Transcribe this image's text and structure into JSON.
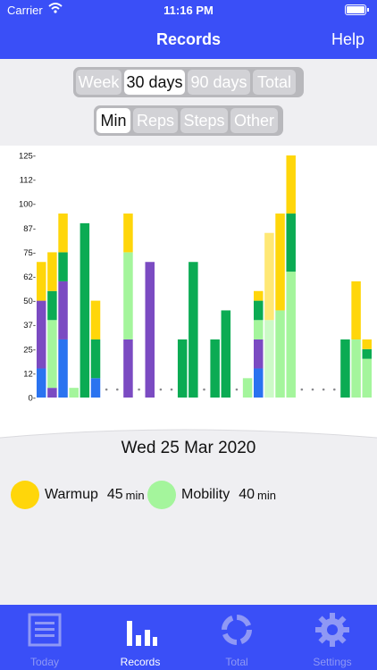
{
  "status": {
    "carrier": "Carrier",
    "time": "11:16 PM"
  },
  "navbar": {
    "title": "Records",
    "help": "Help"
  },
  "period_tabs": [
    {
      "label": "Week",
      "selected": false
    },
    {
      "label": "30 days",
      "selected": true
    },
    {
      "label": "90 days",
      "selected": false
    },
    {
      "label": "Total",
      "selected": false
    }
  ],
  "metric_tabs": [
    {
      "label": "Min",
      "selected": true
    },
    {
      "label": "Reps",
      "selected": false
    },
    {
      "label": "Steps",
      "selected": false
    },
    {
      "label": "Other",
      "selected": false
    }
  ],
  "chart_data": {
    "type": "bar",
    "stacked": true,
    "ylim": [
      0,
      125
    ],
    "y_ticks": [
      "125-",
      "112-",
      "100-",
      "87-",
      "75-",
      "62-",
      "50-",
      "37-",
      "25-",
      "12-",
      "0-"
    ],
    "series_colors": {
      "yellow": "#ffd60a",
      "green": "#0bab53",
      "lightgreen": "#a4f59c",
      "purple": "#7b4bc2",
      "blue": "#2a73f0"
    },
    "days": [
      [
        [
          "blue",
          15
        ],
        [
          "purple",
          35
        ],
        [
          "yellow",
          20
        ]
      ],
      [
        [
          "purple",
          5
        ],
        [
          "lightgreen",
          35
        ],
        [
          "green",
          15
        ],
        [
          "yellow",
          20
        ]
      ],
      [
        [
          "blue",
          30
        ],
        [
          "purple",
          30
        ],
        [
          "green",
          15
        ],
        [
          "yellow",
          20
        ]
      ],
      [
        [
          "lightgreen",
          5
        ]
      ],
      [
        [
          "green",
          90
        ]
      ],
      [
        [
          "blue",
          10
        ],
        [
          "green",
          20
        ],
        [
          "yellow",
          20
        ]
      ],
      [],
      [],
      [
        [
          "purple",
          30
        ],
        [
          "lightgreen",
          45
        ],
        [
          "yellow",
          20
        ]
      ],
      [],
      [
        [
          "purple",
          70
        ]
      ],
      [],
      [],
      [
        [
          "green",
          30
        ]
      ],
      [
        [
          "green",
          70
        ]
      ],
      [],
      [
        [
          "green",
          30
        ]
      ],
      [
        [
          "green",
          45
        ]
      ],
      [],
      [
        [
          "lightgreen",
          10
        ]
      ],
      [
        [
          "blue",
          15
        ],
        [
          "purple",
          15
        ],
        [
          "lightgreen",
          10
        ],
        [
          "green",
          10
        ],
        [
          "yellow",
          5
        ]
      ],
      [
        [
          "lightgreen",
          40
        ],
        [
          "yellow",
          45
        ]
      ],
      [
        [
          "lightgreen",
          45
        ],
        [
          "yellow",
          50
        ]
      ],
      [
        [
          "lightgreen",
          65
        ],
        [
          "green",
          30
        ],
        [
          "yellow",
          30
        ]
      ],
      [],
      [],
      [],
      [],
      [
        [
          "green",
          30
        ]
      ],
      [
        [
          "lightgreen",
          30
        ],
        [
          "yellow",
          30
        ]
      ],
      [
        [
          "lightgreen",
          20
        ],
        [
          "green",
          5
        ],
        [
          "yellow",
          5
        ]
      ]
    ],
    "selected_day": 21,
    "faded_days": [
      21
    ]
  },
  "detail": {
    "date": "Wed 25 Mar 2020",
    "items": [
      {
        "name": "Warmup",
        "value": "45",
        "unit": "min",
        "color": "#ffd60a"
      },
      {
        "name": "Mobility",
        "value": "40",
        "unit": "min",
        "color": "#a4f59c"
      }
    ]
  },
  "tabbar": {
    "items": [
      {
        "label": "Today",
        "icon": "document-icon",
        "selected": false
      },
      {
        "label": "Records",
        "icon": "bar-chart-icon",
        "selected": true
      },
      {
        "label": "Total",
        "icon": "ring-icon",
        "selected": false
      },
      {
        "label": "Settings",
        "icon": "gear-icon",
        "selected": false
      }
    ],
    "active_color": "#ffffff",
    "inactive_color": "#8f98f5"
  }
}
